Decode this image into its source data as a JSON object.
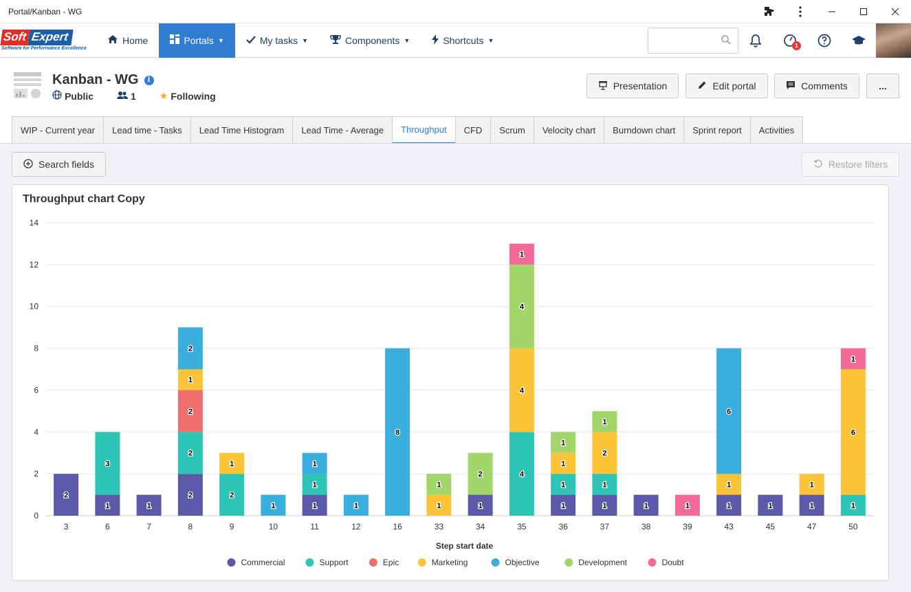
{
  "window": {
    "title": "Portal/Kanban - WG"
  },
  "nav": {
    "items": [
      {
        "label": "Home",
        "icon": "home-icon",
        "caret": false,
        "active": false
      },
      {
        "label": "Portals",
        "icon": "grid-icon",
        "caret": true,
        "active": true
      },
      {
        "label": "My tasks",
        "icon": "check-icon",
        "caret": true,
        "active": false
      },
      {
        "label": "Components",
        "icon": "trophy-icon",
        "caret": true,
        "active": false
      },
      {
        "label": "Shortcuts",
        "icon": "lightning-icon",
        "caret": true,
        "active": false
      }
    ],
    "search_placeholder": "",
    "notification_badge": "1"
  },
  "logo": {
    "part1": "Soft",
    "part2": "Expert",
    "tagline": "Software for Performance Excellence"
  },
  "portal": {
    "title": "Kanban - WG",
    "visibility": "Public",
    "members": "1",
    "following": "Following"
  },
  "header_buttons": {
    "presentation": "Presentation",
    "edit": "Edit portal",
    "comments": "Comments",
    "more": "..."
  },
  "tabs": [
    {
      "label": "WIP - Current year",
      "active": false
    },
    {
      "label": "Lead time - Tasks",
      "active": false
    },
    {
      "label": "Lead Time Histogram",
      "active": false
    },
    {
      "label": "Lead Time - Average",
      "active": false
    },
    {
      "label": "Throughput",
      "active": true
    },
    {
      "label": "CFD",
      "active": false
    },
    {
      "label": "Scrum",
      "active": false
    },
    {
      "label": "Velocity chart",
      "active": false
    },
    {
      "label": "Burndown chart",
      "active": false
    },
    {
      "label": "Sprint report",
      "active": false
    },
    {
      "label": "Activities",
      "active": false
    }
  ],
  "filters": {
    "search": "Search fields",
    "restore": "Restore filters"
  },
  "chart_data": {
    "type": "bar",
    "stacked": true,
    "title": "Throughput chart Copy",
    "xlabel": "Step start date",
    "ylabel": "",
    "ylim": [
      0,
      14
    ],
    "yticks": [
      0,
      2,
      4,
      6,
      8,
      10,
      12,
      14
    ],
    "grid": true,
    "legend_position": "bottom",
    "categories": [
      "3",
      "6",
      "7",
      "8",
      "9",
      "10",
      "11",
      "12",
      "16",
      "33",
      "34",
      "35",
      "36",
      "37",
      "38",
      "39",
      "43",
      "45",
      "47",
      "50"
    ],
    "series": [
      {
        "name": "Commercial",
        "color": "#5c5aa8",
        "values": [
          2,
          1,
          1,
          2,
          0,
          0,
          1,
          0,
          0,
          0,
          1,
          0,
          1,
          1,
          1,
          0,
          1,
          1,
          1,
          0
        ]
      },
      {
        "name": "Support",
        "color": "#2ec4b6",
        "values": [
          0,
          3,
          0,
          2,
          2,
          0,
          1,
          0,
          0,
          0,
          0,
          4,
          1,
          1,
          0,
          0,
          0,
          0,
          0,
          1
        ]
      },
      {
        "name": "Epic",
        "color": "#ef6f6c",
        "values": [
          0,
          0,
          0,
          2,
          0,
          0,
          0,
          0,
          0,
          0,
          0,
          0,
          0,
          0,
          0,
          0,
          0,
          0,
          0,
          0
        ]
      },
      {
        "name": "Marketing",
        "color": "#fcc438",
        "values": [
          0,
          0,
          0,
          1,
          1,
          0,
          0,
          0,
          0,
          1,
          0,
          4,
          1,
          2,
          0,
          0,
          1,
          0,
          1,
          6
        ]
      },
      {
        "name": "Objective",
        "color": "#3aaedc",
        "values": [
          0,
          0,
          0,
          2,
          0,
          1,
          1,
          1,
          8,
          0,
          0,
          0,
          0,
          0,
          0,
          0,
          6,
          0,
          0,
          0
        ]
      },
      {
        "name": "Development",
        "color": "#a3d66a",
        "values": [
          0,
          0,
          0,
          0,
          0,
          0,
          0,
          0,
          0,
          1,
          2,
          4,
          1,
          1,
          0,
          0,
          0,
          0,
          0,
          0
        ]
      },
      {
        "name": "Doubt",
        "color": "#f3699a",
        "values": [
          0,
          0,
          0,
          0,
          0,
          0,
          0,
          0,
          0,
          0,
          0,
          1,
          0,
          0,
          0,
          1,
          0,
          0,
          0,
          1
        ]
      }
    ]
  }
}
